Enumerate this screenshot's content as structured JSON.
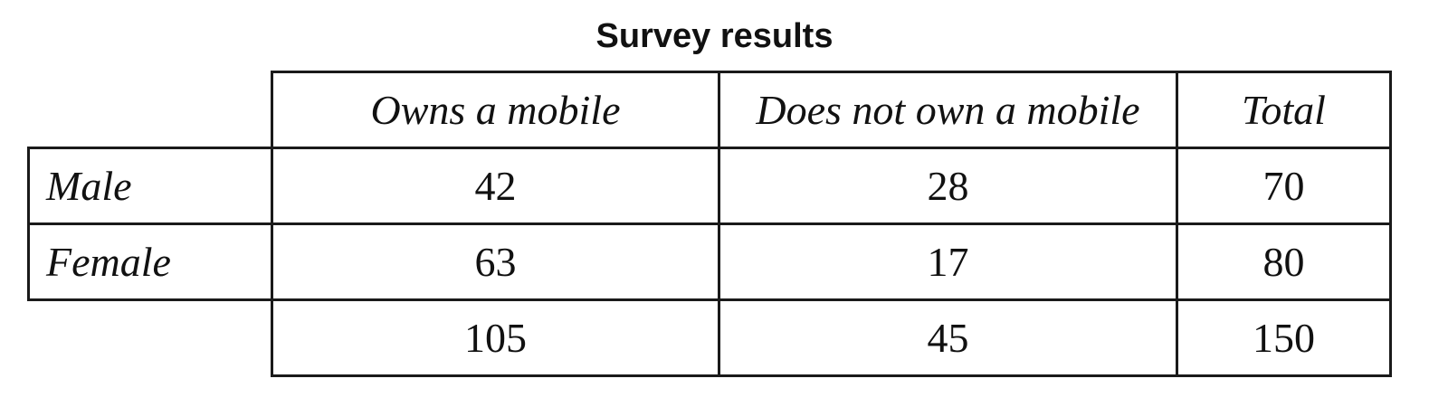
{
  "chart_data": {
    "type": "table",
    "title": "Survey results",
    "columns": [
      "Owns a mobile",
      "Does not own a mobile",
      "Total"
    ],
    "rows": [
      {
        "label": "Male",
        "values": [
          42,
          28,
          70
        ]
      },
      {
        "label": "Female",
        "values": [
          63,
          17,
          80
        ]
      },
      {
        "label": "",
        "values": [
          105,
          45,
          150
        ]
      }
    ]
  }
}
